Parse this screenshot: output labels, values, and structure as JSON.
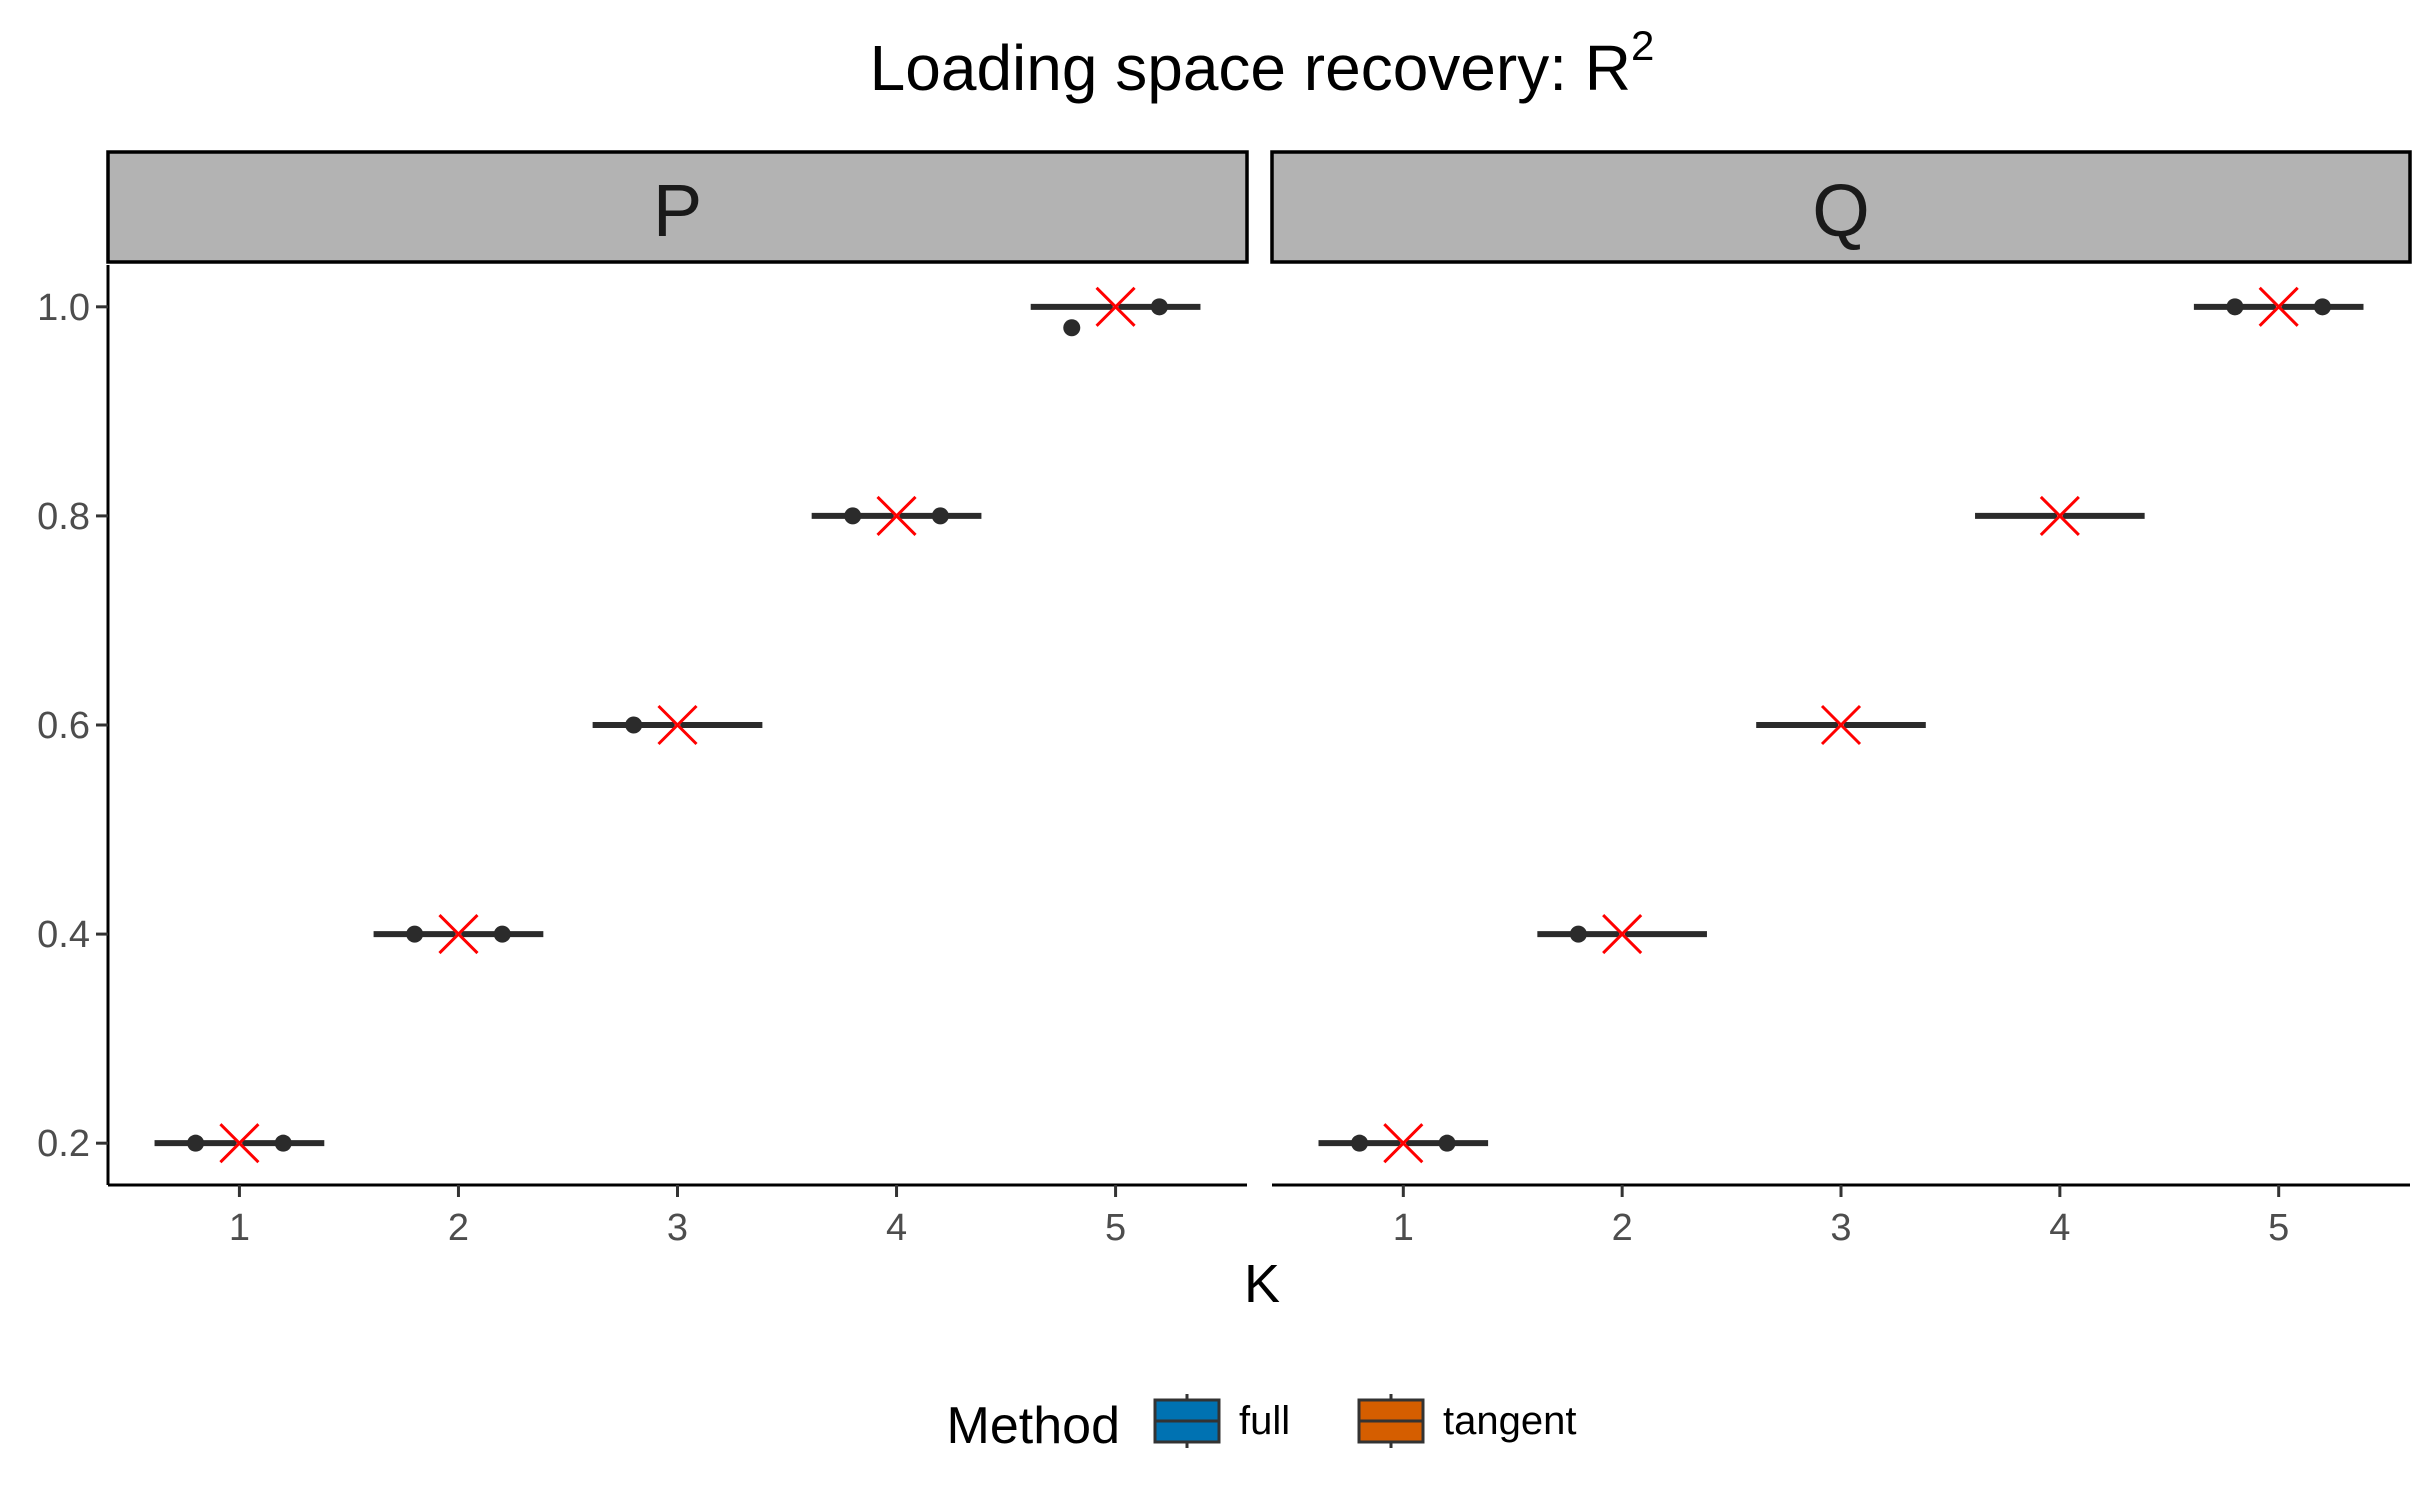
{
  "chart_data": {
    "type": "boxplot",
    "title": "Loading space recovery: R",
    "title_superscript": "2",
    "xlabel": "K",
    "ylabel": "",
    "ylim": [
      0.16,
      1.04
    ],
    "yticks": [
      0.2,
      0.4,
      0.6,
      0.8,
      1.0
    ],
    "ytick_labels": [
      "0.2",
      "0.4",
      "0.6",
      "0.8",
      "1.0"
    ],
    "categories": [
      "1",
      "2",
      "3",
      "4",
      "5"
    ],
    "legend": {
      "title": "Method",
      "position": "bottom",
      "entries": [
        {
          "name": "full",
          "color": "#0072B2"
        },
        {
          "name": "tangent",
          "color": "#D55E00"
        }
      ]
    },
    "mean_marker": {
      "shape": "x",
      "color": "#FF0000"
    },
    "facets": [
      {
        "name": "P",
        "series": [
          {
            "name": "full",
            "values": [
              0.2,
              0.4,
              0.6,
              0.8,
              1.0
            ],
            "outliers": [
              [
                0.2
              ],
              [
                0.4
              ],
              [
                0.6
              ],
              [
                0.8
              ],
              [
                0.98
              ]
            ]
          },
          {
            "name": "tangent",
            "values": [
              0.2,
              0.4,
              0.6,
              0.8,
              1.0
            ],
            "outliers": [
              [
                0.2
              ],
              [
                0.4
              ],
              [],
              [
                0.8
              ],
              [
                1.0
              ]
            ]
          }
        ],
        "means": [
          0.2,
          0.4,
          0.6,
          0.8,
          1.0
        ]
      },
      {
        "name": "Q",
        "series": [
          {
            "name": "full",
            "values": [
              0.2,
              0.4,
              0.6,
              0.8,
              1.0
            ],
            "outliers": [
              [
                0.2
              ],
              [
                0.4
              ],
              [],
              [],
              [
                1.0
              ]
            ]
          },
          {
            "name": "tangent",
            "values": [
              0.2,
              0.4,
              0.6,
              0.8,
              1.0
            ],
            "outliers": [
              [
                0.2
              ],
              [],
              [],
              [],
              [
                1.0
              ]
            ]
          }
        ],
        "means": [
          0.2,
          0.4,
          0.6,
          0.8,
          1.0
        ]
      }
    ]
  }
}
